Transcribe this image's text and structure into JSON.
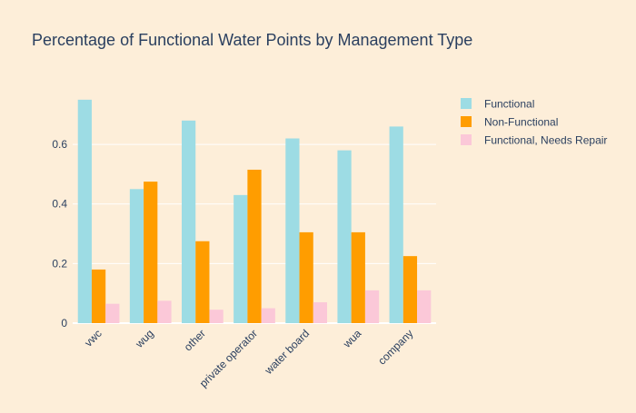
{
  "chart_data": {
    "type": "bar",
    "title": "Percentage of Functional Water Points by Management Type",
    "xlabel": "",
    "ylabel": "",
    "categories": [
      "vwc",
      "wug",
      "other",
      "private operator",
      "water board",
      "wua",
      "company"
    ],
    "series": [
      {
        "name": "Functional",
        "color": "#9ddce4",
        "values": [
          0.75,
          0.45,
          0.68,
          0.43,
          0.62,
          0.58,
          0.66
        ]
      },
      {
        "name": "Non-Functional",
        "color": "#ff9d00",
        "values": [
          0.18,
          0.475,
          0.275,
          0.515,
          0.305,
          0.305,
          0.225
        ]
      },
      {
        "name": "Functional, Needs Repair",
        "color": "#fbc8d8",
        "values": [
          0.065,
          0.075,
          0.045,
          0.05,
          0.07,
          0.11,
          0.11
        ]
      }
    ],
    "ylim": [
      0,
      0.78
    ],
    "yticks": [
      0,
      0.2,
      0.4,
      0.6
    ],
    "ytick_labels": [
      "0",
      "0.2",
      "0.4",
      "0.6"
    ],
    "grid": true,
    "legend_position": "top-right",
    "background_color": "#fdeed9"
  }
}
